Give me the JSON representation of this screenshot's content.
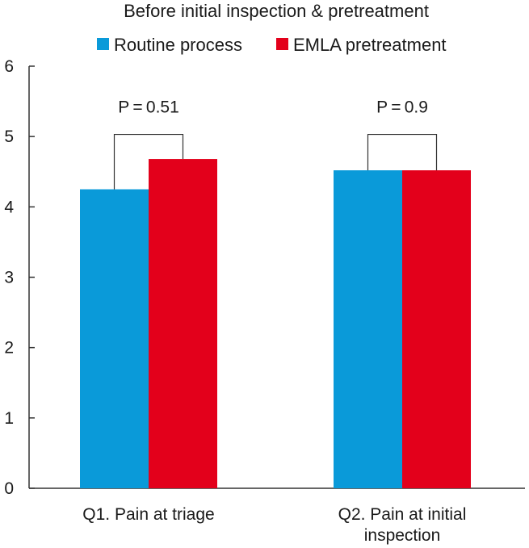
{
  "chart_data": {
    "type": "bar",
    "title": "Before initial inspection & pretreatment",
    "xlabel": "",
    "ylabel": "",
    "ylim": [
      0,
      6
    ],
    "yticks": [
      0,
      1,
      2,
      3,
      4,
      5,
      6
    ],
    "grid": false,
    "legend_position": "top-center",
    "categories": [
      [
        "Q1. Pain at triage"
      ],
      [
        "Q2. Pain at initial",
        "inspection"
      ]
    ],
    "series": [
      {
        "name": "Routine process",
        "color": "#0a9ad9",
        "values": [
          4.25,
          4.52
        ]
      },
      {
        "name": "EMLA pretreatment",
        "color": "#e3001b",
        "values": [
          4.68,
          4.52
        ]
      }
    ],
    "annotations": [
      {
        "category": 0,
        "text": "P = 0.51",
        "bracket_top": 5.03
      },
      {
        "category": 1,
        "text": "P = 0.9",
        "bracket_top": 5.03
      }
    ]
  }
}
